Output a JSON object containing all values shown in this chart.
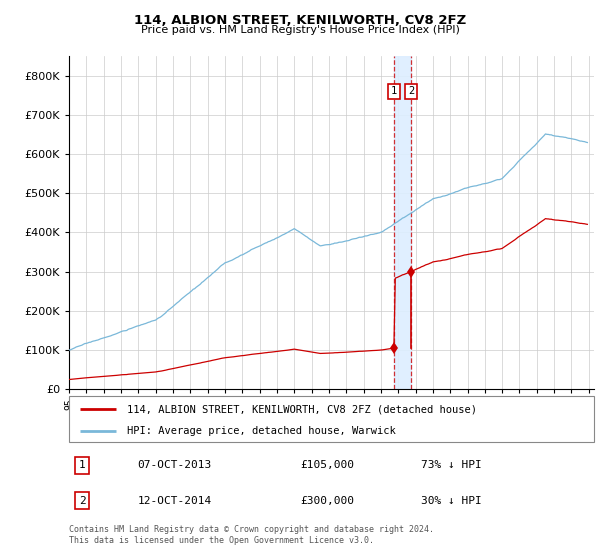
{
  "title": "114, ALBION STREET, KENILWORTH, CV8 2FZ",
  "subtitle": "Price paid vs. HM Land Registry's House Price Index (HPI)",
  "hpi_label": "HPI: Average price, detached house, Warwick",
  "property_label": "114, ALBION STREET, KENILWORTH, CV8 2FZ (detached house)",
  "sale1_date": "07-OCT-2013",
  "sale1_price": 105000,
  "sale1_pct": "73% ↓ HPI",
  "sale2_date": "12-OCT-2014",
  "sale2_price": 300000,
  "sale2_pct": "30% ↓ HPI",
  "footnote": "Contains HM Land Registry data © Crown copyright and database right 2024.\nThis data is licensed under the Open Government Licence v3.0.",
  "hpi_color": "#7ab8d9",
  "property_color": "#cc0000",
  "marker_color": "#cc0000",
  "vband_color": "#ddeeff",
  "vline_color": "#cc0000",
  "ylim": [
    0,
    850000
  ],
  "yticks": [
    0,
    100000,
    200000,
    300000,
    400000,
    500000,
    600000,
    700000,
    800000
  ],
  "background_color": "#ffffff",
  "grid_color": "#cccccc",
  "sale1_year": 2013.75,
  "sale2_year": 2014.75
}
